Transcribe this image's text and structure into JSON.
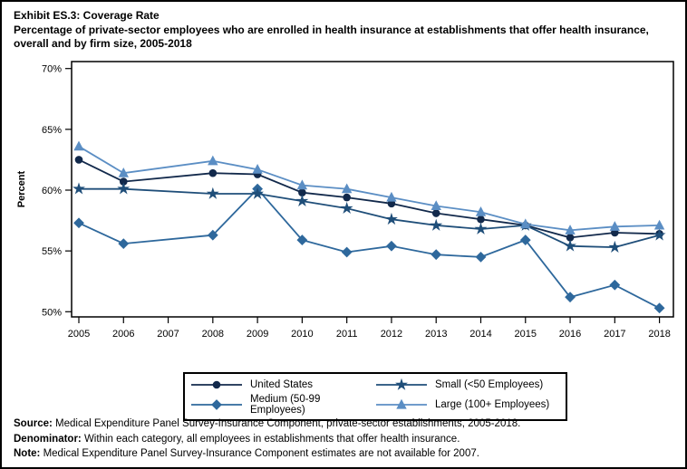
{
  "title": {
    "line1": "Exhibit ES.3: Coverage Rate",
    "line2": "Percentage of private-sector employees who are enrolled in health insurance at establishments that offer health insurance, overall and by firm size, 2005-2018"
  },
  "chart_data": {
    "type": "line",
    "title": "Exhibit ES.3: Coverage Rate",
    "subtitle": "Percentage of private-sector employees who are enrolled in health insurance at establishments that offer health insurance, overall and by firm size, 2005-2018",
    "xlabel": "",
    "ylabel": "Percent",
    "ylim": [
      50,
      70
    ],
    "yticks": [
      70,
      65,
      60,
      55,
      50
    ],
    "ytick_suffix": "%",
    "grid": false,
    "legend_position": "bottom",
    "categories": [
      "2005",
      "2006",
      "2007",
      "2008",
      "2009",
      "2010",
      "2011",
      "2012",
      "2013",
      "2014",
      "2015",
      "2016",
      "2017",
      "2018"
    ],
    "missing_years": [
      "2007"
    ],
    "series": [
      {
        "name": "United States",
        "marker": "circle",
        "color": "#12294b",
        "values": [
          62.5,
          60.7,
          null,
          61.4,
          61.3,
          59.8,
          59.4,
          58.9,
          58.1,
          57.6,
          57.1,
          56.1,
          56.5,
          56.4
        ]
      },
      {
        "name": "Medium (50-99 Employees)",
        "marker": "diamond",
        "color": "#2e689c",
        "values": [
          57.3,
          55.6,
          null,
          56.3,
          60.1,
          55.9,
          54.9,
          55.4,
          54.7,
          54.5,
          55.9,
          51.2,
          52.2,
          50.3
        ]
      },
      {
        "name": "Small (<50 Employees)",
        "marker": "star",
        "color": "#1f4e79",
        "values": [
          60.1,
          60.1,
          null,
          59.7,
          59.7,
          59.1,
          58.5,
          57.6,
          57.1,
          56.8,
          57.1,
          55.4,
          55.3,
          56.3
        ]
      },
      {
        "name": "Large (100+ Employees)",
        "marker": "triangle",
        "color": "#5b8ec4",
        "values": [
          63.6,
          61.4,
          null,
          62.4,
          61.7,
          60.4,
          60.1,
          59.4,
          58.7,
          58.2,
          57.2,
          56.7,
          57.0,
          57.1
        ]
      }
    ],
    "legend_order": [
      0,
      2,
      1,
      3
    ]
  },
  "footer": {
    "source_label": "Source:",
    "source_text": " Medical Expenditure Panel Survey-Insurance Component, private-sector establishments, 2005-2018.",
    "denominator_label": "Denominator:",
    "denominator_text": " Within each category, all employees in establishments that offer health insurance.",
    "note_label": "Note:",
    "note_text": " Medical Expenditure Panel Survey-Insurance Component estimates are not available for 2007."
  }
}
